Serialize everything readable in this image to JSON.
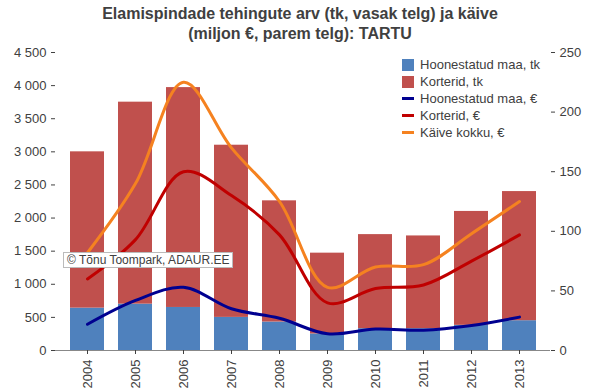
{
  "chart_data": {
    "type": "bar",
    "title": "Elamispindade tehingute arv (tk, vasak telg) ja käive (miljon €, parem telg): TARTU",
    "categories": [
      "2004",
      "2005",
      "2006",
      "2007",
      "2008",
      "2009",
      "2010",
      "2011",
      "2012",
      "2013"
    ],
    "stacked": true,
    "series": [
      {
        "name": "Hoonestatud maa, tk",
        "type": "bar",
        "color": "#4f81bd",
        "values": [
          640,
          700,
          650,
          500,
          430,
          250,
          330,
          330,
          380,
          450
        ]
      },
      {
        "name": "Korterid, tk",
        "type": "bar",
        "color": "#c0504d",
        "values": [
          2360,
          3050,
          3320,
          2600,
          1830,
          1220,
          1420,
          1400,
          1720,
          1950
        ]
      },
      {
        "name": "Hoonestatud maa, €",
        "type": "line",
        "axis": "y2",
        "color": "#000090",
        "values": [
          22,
          42,
          53,
          35,
          27,
          14,
          18,
          17,
          21,
          28
        ]
      },
      {
        "name": "Korterid, €",
        "type": "line",
        "axis": "y2",
        "color": "#c00000",
        "values": [
          60,
          93,
          150,
          130,
          97,
          40,
          52,
          55,
          75,
          97
        ]
      },
      {
        "name": "Käive kokku, €",
        "type": "line",
        "axis": "y2",
        "color": "#f58220",
        "values": [
          82,
          140,
          225,
          170,
          125,
          53,
          70,
          72,
          98,
          125
        ]
      }
    ],
    "ylim": [
      0,
      4500
    ],
    "yticks": [
      0,
      500,
      {
        "value": 1000,
        "label": "1 000"
      },
      {
        "value": 1500,
        "label": "1 500"
      },
      {
        "value": 2000,
        "label": "2 000"
      },
      {
        "value": 2500,
        "label": "2 500"
      },
      {
        "value": 3000,
        "label": "3 000"
      },
      {
        "value": 3500,
        "label": "3 500"
      },
      {
        "value": 4000,
        "label": "4 000"
      },
      {
        "value": 4500,
        "label": "4 500"
      }
    ],
    "y2lim": [
      0,
      250
    ],
    "y2ticks": [
      0,
      50,
      100,
      150,
      200,
      250
    ],
    "grid": false,
    "legend": "top-right",
    "annotations": [
      {
        "text": "© Tõnu Toompark, ADAUR.EE"
      }
    ]
  }
}
